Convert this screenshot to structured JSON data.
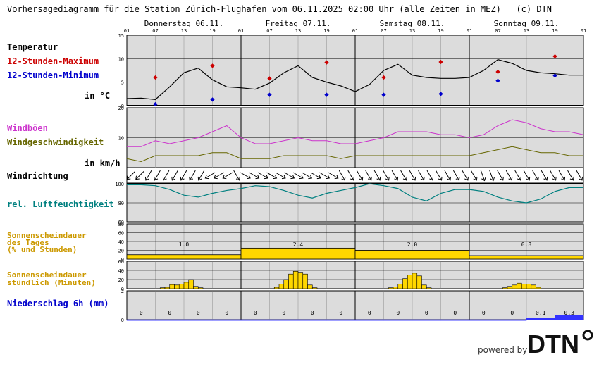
{
  "title": "Vorhersagediagramm für die Station Zürich-Flughafen vom 06.11.2025 02:00 Uhr (alle Zeiten in MEZ)   (c) DTN",
  "days": [
    "Donnerstag 06.11.",
    "Freitag 07.11.",
    "Samstag 08.11.",
    "Sonntag 09.11."
  ],
  "hour_ticks": [
    "01",
    "07",
    "13",
    "19",
    "01",
    "07",
    "13",
    "19",
    "01",
    "07",
    "13",
    "19",
    "01",
    "07",
    "13",
    "19",
    "01"
  ],
  "labels": {
    "temperatur": "Temperatur",
    "max": "12-Stunden-Maximum",
    "min": "12-Stunden-Minimum",
    "temp_unit": "in °C",
    "windboen": "Windböen",
    "windgeschw": "Windgeschwindigkeit",
    "wind_unit": "in km/h",
    "windrichtung": "Windrichtung",
    "feuchte": "rel. Luftfeuchtigkeit",
    "sonne_tag": "Sonnenscheindauer\ndes Tages\n(% und Stunden)",
    "sonne_std": "Sonnenscheindauer\nstündlich (Minuten)",
    "niederschlag": "Niederschlag 6h (mm)"
  },
  "colors": {
    "temp_line": "#000000",
    "max_marker": "#cc0000",
    "min_marker": "#0000cc",
    "gust_line": "#cc33cc",
    "wind_line": "#666600",
    "humidity_line": "#008080",
    "sun_fill": "#ffd700",
    "precip_fill": "#3333ff",
    "label_red": "#cc0000",
    "label_blue": "#0000cc",
    "label_magenta": "#cc33cc",
    "label_olive": "#666600",
    "label_teal": "#008080",
    "label_orange": "#cc9900",
    "panel_bg": "#dcdcdc"
  },
  "powered_by": "powered by",
  "logo_text": "DTN",
  "chart_data": [
    {
      "type": "line",
      "name": "temperature",
      "x_unit": "hours since 06.11. 01:00",
      "ylim": [
        0,
        15
      ],
      "yticks": [
        0,
        5,
        10,
        15
      ],
      "x": [
        0,
        3,
        6,
        9,
        12,
        15,
        18,
        21,
        24,
        27,
        30,
        33,
        36,
        39,
        42,
        45,
        48,
        51,
        54,
        57,
        60,
        63,
        66,
        69,
        72,
        75,
        78,
        81,
        84,
        87,
        90,
        93,
        96
      ],
      "values": [
        1.5,
        1.6,
        1.3,
        4.0,
        7.0,
        8.0,
        5.5,
        4.0,
        3.8,
        3.5,
        4.8,
        7.0,
        8.5,
        6.0,
        5.0,
        4.2,
        3.0,
        4.5,
        7.5,
        8.8,
        6.5,
        6.0,
        5.8,
        5.8,
        6.0,
        7.5,
        9.8,
        9.0,
        7.5,
        7.0,
        6.8,
        6.5,
        6.5
      ],
      "max": {
        "x": [
          6,
          18,
          30,
          42,
          54,
          66,
          78,
          90
        ],
        "values": [
          6.0,
          8.5,
          5.8,
          9.2,
          6.0,
          9.3,
          7.2,
          10.5
        ]
      },
      "min": {
        "x": [
          6,
          18,
          30,
          42,
          54,
          66,
          78,
          90
        ],
        "values": [
          0.3,
          1.3,
          2.3,
          2.3,
          2.3,
          2.5,
          5.3,
          6.4
        ]
      }
    },
    {
      "type": "line",
      "name": "wind",
      "ylim": [
        0,
        20
      ],
      "yticks": [
        10,
        20
      ],
      "x": [
        0,
        3,
        6,
        9,
        12,
        15,
        18,
        21,
        24,
        27,
        30,
        33,
        36,
        39,
        42,
        45,
        48,
        51,
        54,
        57,
        60,
        63,
        66,
        69,
        72,
        75,
        78,
        81,
        84,
        87,
        90,
        93,
        96
      ],
      "gusts": [
        7,
        7,
        9,
        8,
        9,
        10,
        12,
        14,
        10,
        8,
        8,
        9,
        10,
        9,
        9,
        8,
        8,
        9,
        10,
        12,
        12,
        12,
        11,
        11,
        10,
        11,
        14,
        16,
        15,
        13,
        12,
        12,
        11
      ],
      "speed": [
        3,
        2,
        4,
        4,
        4,
        4,
        5,
        5,
        3,
        3,
        3,
        4,
        4,
        4,
        4,
        3,
        4,
        4,
        4,
        4,
        4,
        4,
        4,
        4,
        4,
        5,
        6,
        7,
        6,
        5,
        5,
        4,
        4
      ]
    },
    {
      "type": "table",
      "name": "wind_direction",
      "arrow_angles_deg": [
        45,
        45,
        30,
        30,
        30,
        30,
        30,
        30,
        30,
        60,
        60,
        60,
        330,
        300,
        300,
        300,
        300,
        300,
        300,
        300,
        300,
        300,
        300,
        300,
        330,
        330,
        330,
        330,
        330,
        330,
        330,
        330,
        330,
        330,
        330,
        330,
        330,
        330,
        330,
        330,
        340,
        340,
        330,
        330,
        330,
        330,
        330,
        330,
        330,
        330,
        330,
        330
      ]
    },
    {
      "type": "line",
      "name": "humidity",
      "ylim": [
        60,
        100
      ],
      "yticks": [
        60,
        80,
        100
      ],
      "x": [
        0,
        3,
        6,
        9,
        12,
        15,
        18,
        21,
        24,
        27,
        30,
        33,
        36,
        39,
        42,
        45,
        48,
        51,
        54,
        57,
        60,
        63,
        66,
        69,
        72,
        75,
        78,
        81,
        84,
        87,
        90,
        93,
        96
      ],
      "values": [
        99,
        99,
        98,
        94,
        88,
        86,
        90,
        93,
        95,
        98,
        97,
        93,
        88,
        85,
        90,
        93,
        96,
        100,
        98,
        95,
        86,
        82,
        90,
        94,
        94,
        92,
        86,
        82,
        80,
        84,
        92,
        96,
        96
      ]
    },
    {
      "type": "bar",
      "name": "daily_sunshine",
      "categories": [
        "06.11.",
        "07.11.",
        "08.11.",
        "09.11."
      ],
      "values": [
        1.0,
        2.4,
        2.0,
        0.8
      ],
      "percent": [
        10,
        25,
        20,
        8
      ],
      "ylim": [
        0,
        80
      ],
      "yticks": [
        0,
        20,
        40,
        60,
        80
      ]
    },
    {
      "type": "bar",
      "name": "hourly_sunshine",
      "x": [
        7,
        8,
        9,
        10,
        11,
        12,
        13,
        14,
        15,
        31,
        32,
        33,
        34,
        35,
        36,
        37,
        38,
        39,
        55,
        56,
        57,
        58,
        59,
        60,
        61,
        62,
        63,
        79,
        80,
        81,
        82,
        83,
        84,
        85,
        86
      ],
      "values": [
        2,
        3,
        9,
        8,
        10,
        14,
        20,
        5,
        2,
        3,
        10,
        20,
        32,
        38,
        36,
        32,
        8,
        2,
        2,
        4,
        10,
        22,
        30,
        34,
        28,
        8,
        2,
        2,
        5,
        8,
        12,
        10,
        10,
        8,
        3
      ],
      "ylim": [
        0,
        60
      ],
      "yticks": [
        0,
        20,
        40,
        60
      ]
    },
    {
      "type": "bar",
      "name": "precipitation_6h",
      "x": [
        0,
        6,
        12,
        18,
        24,
        30,
        36,
        42,
        48,
        54,
        60,
        66,
        72,
        78,
        84,
        90
      ],
      "values": [
        0,
        0,
        0,
        0,
        0,
        0,
        0,
        0,
        0,
        0,
        0,
        0,
        0,
        0,
        0.1,
        0.3
      ],
      "labels": [
        "0",
        "0",
        "0",
        "0",
        "0",
        "0",
        "0",
        "0",
        "0",
        "0",
        "0",
        "0",
        "0",
        "0",
        "0.1",
        "0.3"
      ],
      "ylim": [
        0,
        2
      ],
      "yticks": [
        0,
        2
      ]
    }
  ]
}
